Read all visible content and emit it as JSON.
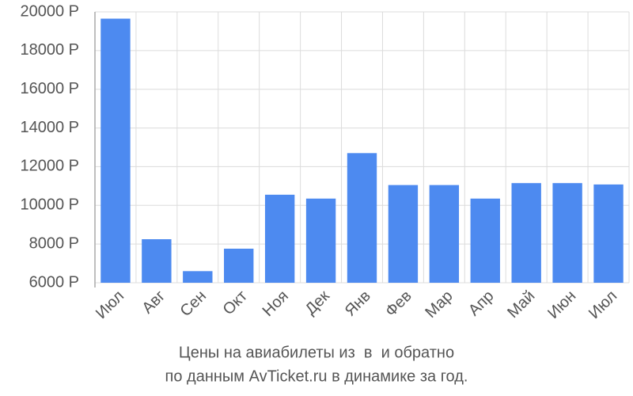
{
  "chart_data": {
    "type": "bar",
    "title": "Цены на авиабилеты из  в  и обратно",
    "subtitle": "по данным AvTicket.ru в динамике за год.",
    "categories": [
      "Июл",
      "Авг",
      "Сен",
      "Окт",
      "Ноя",
      "Дек",
      "Янв",
      "Фев",
      "Мар",
      "Апр",
      "Май",
      "Июн",
      "Июл"
    ],
    "values": [
      19650,
      8250,
      6600,
      7760,
      10550,
      10350,
      12700,
      11050,
      11050,
      10350,
      11150,
      11150,
      11080
    ],
    "color": "#4d8af0",
    "ylim": [
      6000,
      20000
    ],
    "yticks": [
      {
        "value": 6000,
        "label": "6000 Р"
      },
      {
        "value": 8000,
        "label": "8000 Р"
      },
      {
        "value": 10000,
        "label": "10000 Р"
      },
      {
        "value": 12000,
        "label": "12000 Р"
      },
      {
        "value": 14000,
        "label": "14000 Р"
      },
      {
        "value": 16000,
        "label": "16000 Р"
      },
      {
        "value": 18000,
        "label": "18000 Р"
      },
      {
        "value": 20000,
        "label": "20000 Р"
      }
    ],
    "grid": true
  }
}
